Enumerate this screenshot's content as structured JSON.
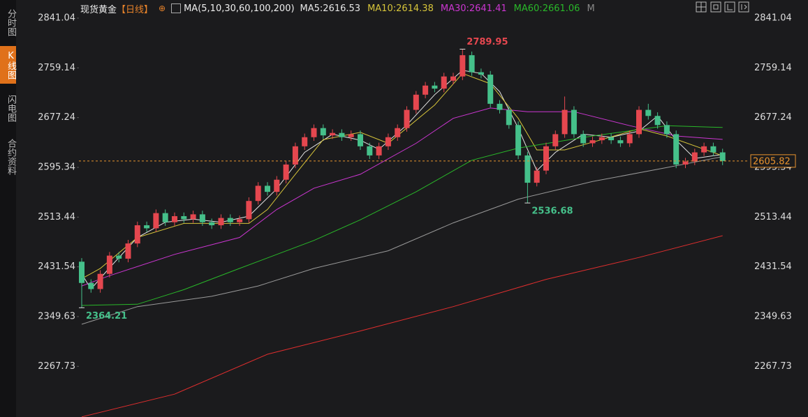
{
  "sidebar": {
    "tabs": [
      "分时图",
      "K线图",
      "闪电图",
      "合约资料"
    ]
  },
  "chart_data": {
    "type": "candlestick",
    "title": "现货黄金",
    "period": "【日线】",
    "indicator": "MA(5,10,30,60,100,200)",
    "extra_legend": "M",
    "up_color": "#e5474f",
    "down_color": "#45c08a",
    "last_price_color": "#e8932e",
    "ylim": [
      2184.3,
      2870.9
    ],
    "yticks": [
      2841.04,
      2759.14,
      2677.24,
      2595.34,
      2513.44,
      2431.54,
      2349.63,
      2267.73
    ],
    "candles": {
      "open": [
        2440,
        2405,
        2395,
        2420,
        2450,
        2445,
        2470,
        2500,
        2495,
        2520,
        2505,
        2515,
        2510,
        2518,
        2505,
        2500,
        2512,
        2505,
        2510,
        2540,
        2565,
        2555,
        2575,
        2600,
        2630,
        2645,
        2660,
        2648,
        2652,
        2645,
        2650,
        2630,
        2615,
        2630,
        2645,
        2660,
        2690,
        2715,
        2730,
        2725,
        2738,
        2745,
        2780,
        2752,
        2748,
        2700,
        2690,
        2665,
        2615,
        2570,
        2590,
        2630,
        2650,
        2690,
        2650,
        2635,
        2640,
        2645,
        2640,
        2635,
        2650,
        2690,
        2680,
        2665,
        2650,
        2600,
        2605,
        2620,
        2630,
        2620
      ],
      "high": [
        2446,
        2411,
        2426,
        2456,
        2456,
        2476,
        2506,
        2506,
        2526,
        2526,
        2521,
        2521,
        2524,
        2524,
        2511,
        2518,
        2518,
        2516,
        2546,
        2571,
        2571,
        2581,
        2606,
        2636,
        2651,
        2666,
        2666,
        2658,
        2658,
        2656,
        2656,
        2636,
        2636,
        2651,
        2666,
        2696,
        2721,
        2736,
        2736,
        2751,
        2751,
        2789.95,
        2786,
        2758,
        2754,
        2706,
        2696,
        2671,
        2621,
        2596,
        2636,
        2656,
        2712,
        2696,
        2656,
        2646,
        2651,
        2651,
        2646,
        2656,
        2696,
        2700,
        2686,
        2671,
        2656,
        2611,
        2626,
        2636,
        2636,
        2626
      ],
      "low": [
        2364.21,
        2389,
        2389,
        2414,
        2439,
        2439,
        2464,
        2489,
        2489,
        2499,
        2499,
        2504,
        2504,
        2499,
        2494,
        2494,
        2499,
        2499,
        2504,
        2534,
        2549,
        2549,
        2569,
        2594,
        2624,
        2639,
        2642,
        2642,
        2639,
        2639,
        2624,
        2609,
        2609,
        2624,
        2639,
        2654,
        2684,
        2709,
        2719,
        2719,
        2732,
        2739,
        2746,
        2742,
        2694,
        2684,
        2659,
        2609,
        2536.68,
        2564,
        2584,
        2624,
        2644,
        2644,
        2629,
        2629,
        2634,
        2634,
        2629,
        2629,
        2644,
        2674,
        2659,
        2644,
        2594,
        2594,
        2599,
        2614,
        2614,
        2599
      ],
      "close": [
        2405,
        2395,
        2420,
        2450,
        2445,
        2470,
        2500,
        2495,
        2520,
        2505,
        2515,
        2510,
        2518,
        2505,
        2500,
        2512,
        2505,
        2510,
        2540,
        2565,
        2555,
        2575,
        2600,
        2630,
        2645,
        2660,
        2648,
        2652,
        2645,
        2650,
        2630,
        2615,
        2630,
        2645,
        2660,
        2690,
        2715,
        2730,
        2725,
        2745,
        2745,
        2780,
        2752,
        2748,
        2700,
        2690,
        2665,
        2615,
        2570,
        2590,
        2630,
        2650,
        2690,
        2650,
        2635,
        2640,
        2645,
        2640,
        2635,
        2650,
        2690,
        2680,
        2665,
        2650,
        2600,
        2605,
        2620,
        2630,
        2620,
        2605.82
      ]
    },
    "series": [
      {
        "name": "MA5:2616.53",
        "color": "#e6e6e6",
        "x": [
          0,
          1,
          3,
          6,
          9,
          12,
          15,
          18,
          21,
          24,
          27,
          30,
          32,
          35,
          38,
          41,
          43,
          45,
          47,
          49,
          51,
          54,
          57,
          60,
          62,
          64,
          66,
          69
        ],
        "values": [
          2420,
          2395,
          2430,
          2480,
          2505,
          2510,
          2505,
          2515,
          2560,
          2620,
          2650,
          2640,
          2625,
          2665,
          2715,
          2755,
          2750,
          2720,
          2660,
          2590,
          2620,
          2650,
          2645,
          2655,
          2680,
          2640,
          2610,
          2616.53
        ]
      },
      {
        "name": "MA10:2614.38",
        "color": "#d6c43a",
        "x": [
          0,
          2,
          6,
          11,
          18,
          20,
          23,
          26,
          30,
          33,
          38,
          41,
          44,
          47,
          49,
          52,
          56,
          60,
          63,
          69
        ],
        "values": [
          2412,
          2429,
          2480,
          2503,
          2503,
          2526,
          2584,
          2641,
          2653,
          2635,
          2698,
          2750,
          2733,
          2676,
          2624,
          2624,
          2641,
          2659,
          2647,
          2614.38
        ]
      },
      {
        "name": "MA30:2641.41",
        "color": "#cc36d2",
        "x": [
          0,
          3,
          10,
          17,
          21,
          25,
          30,
          36,
          40,
          44,
          48,
          53,
          59,
          64,
          69
        ],
        "values": [
          2400,
          2417,
          2452,
          2480,
          2526,
          2561,
          2584,
          2635,
          2676,
          2693,
          2687,
          2687,
          2664,
          2647,
          2641.41
        ]
      },
      {
        "name": "MA60:2661.06",
        "color": "#29b829",
        "x": [
          0,
          6,
          11,
          17,
          25,
          30,
          36,
          42,
          47,
          55,
          63,
          69
        ],
        "values": [
          2368,
          2370,
          2394,
          2429,
          2475,
          2509,
          2555,
          2607,
          2627,
          2647,
          2664,
          2661.06
        ]
      },
      {
        "color": "#9a9a9a",
        "x": [
          0,
          6,
          14,
          19,
          25,
          33,
          40,
          47,
          55,
          63,
          69
        ],
        "values": [
          2337,
          2366,
          2383,
          2400,
          2429,
          2458,
          2504,
          2543,
          2572,
          2595,
          2613
        ]
      },
      {
        "color": "#e02e2e",
        "x": [
          0,
          10,
          20,
          30,
          40,
          50,
          60,
          69
        ],
        "values": [
          2184.5,
          2222,
          2287.6,
          2326,
          2366,
          2411,
          2447,
          2482.8
        ]
      }
    ]
  }
}
